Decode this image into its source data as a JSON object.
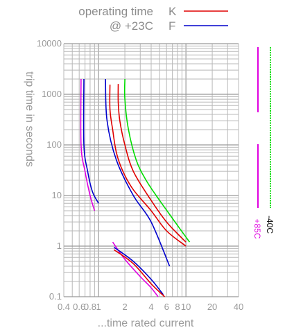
{
  "chart_data": {
    "type": "line",
    "title": "",
    "xlabel": "...time rated current",
    "ylabel": "trip time in seconds",
    "x_scale": "log",
    "y_scale": "log",
    "xlim": [
      0.4,
      40
    ],
    "ylim": [
      0.1,
      10000
    ],
    "grid": true,
    "x_ticks": [
      "0.4",
      "0.6",
      "0.8",
      "1",
      "2",
      "4",
      "6",
      "8",
      "10",
      "20",
      "40"
    ],
    "y_ticks": [
      "0.1",
      "1",
      "10",
      "100",
      "1000",
      "10000"
    ],
    "legend": {
      "title_lines": [
        "operating time",
        "@ +23C"
      ],
      "entries": [
        {
          "label": "K",
          "color": "#e00000"
        },
        {
          "label": "F",
          "color": "#0000cc"
        }
      ],
      "placement": "top-center"
    },
    "side_labels": [
      {
        "label": "+85C",
        "color": "#e000e0"
      },
      {
        "label": "-40C",
        "color": "#00dd00"
      }
    ],
    "series": [
      {
        "color": "#e000e0",
        "points": [
          [
            0.63,
            2000
          ],
          [
            0.63,
            100
          ],
          [
            0.7,
            30
          ],
          [
            0.8,
            10
          ],
          [
            0.9,
            5
          ]
        ]
      },
      {
        "color": "#e000e0",
        "points": [
          [
            1.45,
            1.2
          ],
          [
            2,
            0.55
          ],
          [
            3,
            0.25
          ],
          [
            4,
            0.15
          ],
          [
            4.8,
            0.1
          ]
        ]
      },
      {
        "color": "#0000cc",
        "points": [
          [
            0.68,
            2000
          ],
          [
            0.68,
            100
          ],
          [
            0.75,
            30
          ],
          [
            0.85,
            12
          ],
          [
            1,
            7
          ]
        ]
      },
      {
        "color": "#0000cc",
        "points": [
          [
            1.2,
            2000
          ],
          [
            1.25,
            300
          ],
          [
            1.6,
            50
          ],
          [
            2.5,
            10
          ],
          [
            4,
            3
          ],
          [
            6.5,
            0.4
          ]
        ]
      },
      {
        "color": "#0000cc",
        "points": [
          [
            1.5,
            0.95
          ],
          [
            2.5,
            0.5
          ],
          [
            4,
            0.22
          ],
          [
            5.5,
            0.11
          ]
        ]
      },
      {
        "color": "#e00000",
        "points": [
          [
            1.35,
            1550
          ],
          [
            1.35,
            500
          ],
          [
            1.45,
            200
          ],
          [
            1.6,
            70
          ],
          [
            1.9,
            30
          ],
          [
            2.5,
            13
          ],
          [
            4,
            5
          ],
          [
            6,
            2
          ],
          [
            10,
            1.0
          ]
        ]
      },
      {
        "color": "#e00000",
        "points": [
          [
            1.68,
            1600
          ],
          [
            1.68,
            700
          ],
          [
            1.75,
            300
          ],
          [
            2.0,
            100
          ],
          [
            2.5,
            30
          ],
          [
            4,
            8
          ],
          [
            6,
            3
          ],
          [
            10,
            1.2
          ]
        ]
      },
      {
        "color": "#e00000",
        "points": [
          [
            1.5,
            0.85
          ],
          [
            2.5,
            0.45
          ],
          [
            4,
            0.18
          ],
          [
            5.7,
            0.1
          ]
        ]
      },
      {
        "color": "#00dd00",
        "points": [
          [
            2,
            2000
          ],
          [
            2,
            800
          ],
          [
            2.2,
            200
          ],
          [
            2.7,
            50
          ],
          [
            3.5,
            20
          ],
          [
            5,
            8
          ],
          [
            7.5,
            3
          ],
          [
            11,
            1.2
          ]
        ]
      }
    ]
  }
}
